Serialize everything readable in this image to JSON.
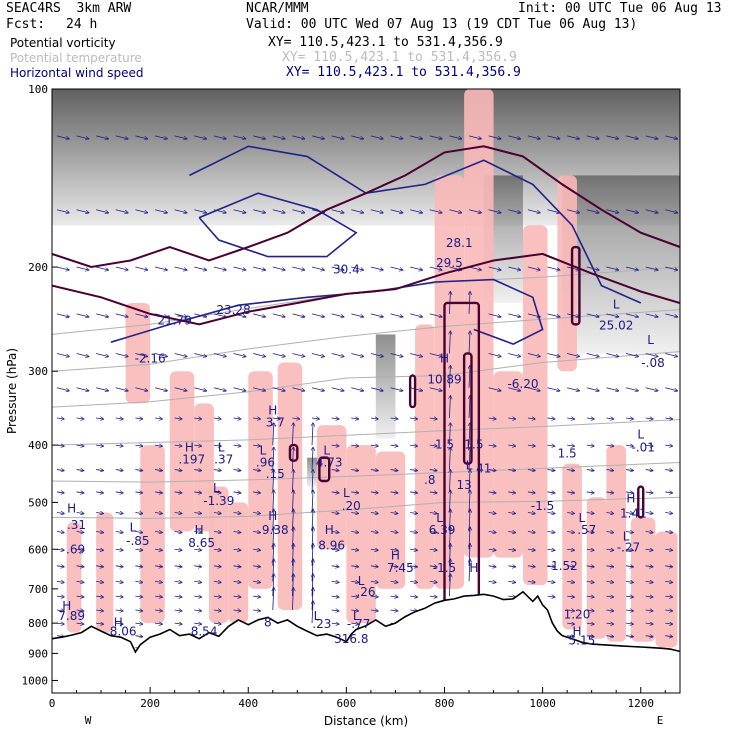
{
  "header": {
    "model": "SEAC4RS  3km ARW",
    "center": "NCAR/MMM",
    "init": "Init: 00 UTC Tue 06 Aug 13",
    "fcst_label": "Fcst:",
    "fcst_value": "24 h",
    "valid": "Valid: 00 UTC Wed 07 Aug 13 (19 CDT Tue 06 Aug 13)"
  },
  "fields": [
    {
      "name": "Potential vorticity",
      "xy": "XY= 110.5,423.1 to 531.4,356.9",
      "color": "#000000"
    },
    {
      "name": "Potential temperature",
      "xy": "XY= 110.5,423.1 to 531.4,356.9",
      "color": "#bbbbbb"
    },
    {
      "name": "Horizontal wind speed",
      "xy": "XY= 110.5,423.1 to 531.4,356.9",
      "color": "#000080"
    }
  ],
  "chart_data": {
    "type": "cross-section",
    "xlabel": "Distance (km)",
    "ylabel": "Pressure (hPa)",
    "xlim": [
      0,
      1280
    ],
    "ylim": [
      1050,
      100
    ],
    "yscale": "log",
    "x_ticks": [
      "0",
      "200",
      "400",
      "600",
      "800",
      "1000",
      "1200"
    ],
    "x_tick_values": [
      0,
      200,
      400,
      600,
      800,
      1000,
      1200
    ],
    "y_ticks": [
      "100",
      "200",
      "300",
      "400",
      "500",
      "600",
      "700",
      "800",
      "900",
      "1000"
    ],
    "y_tick_values": [
      100,
      200,
      300,
      400,
      500,
      600,
      700,
      800,
      900,
      1000
    ],
    "left_end": "W",
    "right_end": "E",
    "colors": {
      "pv_contour": "#4a0030",
      "isentrope": "#b0b0b0",
      "wind": "#1a1a8a",
      "pink_fill": "#f9b9b9",
      "terrain": "#000000"
    },
    "terrain": [
      [
        0,
        850
      ],
      [
        20,
        845
      ],
      [
        40,
        838
      ],
      [
        60,
        830
      ],
      [
        80,
        810
      ],
      [
        100,
        825
      ],
      [
        120,
        840
      ],
      [
        140,
        845
      ],
      [
        160,
        860
      ],
      [
        170,
        895
      ],
      [
        180,
        870
      ],
      [
        200,
        845
      ],
      [
        220,
        835
      ],
      [
        240,
        820
      ],
      [
        260,
        840
      ],
      [
        280,
        835
      ],
      [
        300,
        850
      ],
      [
        320,
        830
      ],
      [
        340,
        842
      ],
      [
        360,
        810
      ],
      [
        380,
        790
      ],
      [
        400,
        805
      ],
      [
        420,
        790
      ],
      [
        440,
        782
      ],
      [
        460,
        800
      ],
      [
        480,
        790
      ],
      [
        500,
        810
      ],
      [
        520,
        825
      ],
      [
        540,
        840
      ],
      [
        560,
        835
      ],
      [
        580,
        845
      ],
      [
        600,
        860
      ],
      [
        610,
        835
      ],
      [
        620,
        820
      ],
      [
        640,
        808
      ],
      [
        660,
        790
      ],
      [
        680,
        810
      ],
      [
        700,
        800
      ],
      [
        720,
        780
      ],
      [
        740,
        765
      ],
      [
        760,
        755
      ],
      [
        780,
        740
      ],
      [
        800,
        732
      ],
      [
        820,
        728
      ],
      [
        840,
        720
      ],
      [
        860,
        718
      ],
      [
        880,
        715
      ],
      [
        900,
        720
      ],
      [
        920,
        730
      ],
      [
        940,
        728
      ],
      [
        960,
        708
      ],
      [
        980,
        735
      ],
      [
        990,
        720
      ],
      [
        1000,
        745
      ],
      [
        1010,
        760
      ],
      [
        1020,
        800
      ],
      [
        1030,
        825
      ],
      [
        1040,
        840
      ],
      [
        1060,
        850
      ],
      [
        1080,
        862
      ],
      [
        1100,
        868
      ],
      [
        1120,
        870
      ],
      [
        1140,
        872
      ],
      [
        1160,
        874
      ],
      [
        1180,
        876
      ],
      [
        1200,
        878
      ],
      [
        1220,
        880
      ],
      [
        1240,
        882
      ],
      [
        1260,
        885
      ],
      [
        1280,
        893
      ]
    ],
    "isentropes": [
      [
        [
          0,
          260
        ],
        [
          200,
          250
        ],
        [
          400,
          235
        ],
        [
          600,
          222
        ],
        [
          800,
          212
        ],
        [
          1000,
          208
        ],
        [
          1280,
          200
        ]
      ],
      [
        [
          0,
          300
        ],
        [
          200,
          292
        ],
        [
          400,
          275
        ],
        [
          600,
          262
        ],
        [
          800,
          252
        ],
        [
          1000,
          245
        ],
        [
          1280,
          236
        ]
      ],
      [
        [
          0,
          345
        ],
        [
          200,
          338
        ],
        [
          400,
          325
        ],
        [
          600,
          308
        ],
        [
          800,
          305
        ],
        [
          1000,
          290
        ],
        [
          1280,
          278
        ]
      ],
      [
        [
          0,
          400
        ],
        [
          200,
          396
        ],
        [
          400,
          392
        ],
        [
          600,
          385
        ],
        [
          800,
          378
        ],
        [
          1000,
          372
        ],
        [
          1280,
          362
        ]
      ],
      [
        [
          0,
          460
        ],
        [
          200,
          462
        ],
        [
          400,
          458
        ],
        [
          600,
          452
        ],
        [
          800,
          445
        ],
        [
          1000,
          438
        ],
        [
          1280,
          428
        ]
      ],
      [
        [
          0,
          530
        ],
        [
          200,
          532
        ],
        [
          400,
          528
        ],
        [
          600,
          515
        ],
        [
          800,
          500
        ],
        [
          1000,
          498
        ],
        [
          1280,
          490
        ]
      ]
    ],
    "pink_regions": [
      [
        30,
        540,
        60,
        830
      ],
      [
        90,
        520,
        125,
        830
      ],
      [
        150,
        230,
        200,
        340
      ],
      [
        180,
        400,
        230,
        800
      ],
      [
        240,
        300,
        290,
        560
      ],
      [
        290,
        340,
        330,
        560
      ],
      [
        320,
        470,
        360,
        800
      ],
      [
        360,
        500,
        400,
        800
      ],
      [
        400,
        300,
        450,
        700
      ],
      [
        460,
        290,
        510,
        760
      ],
      [
        540,
        370,
        600,
        600
      ],
      [
        600,
        400,
        660,
        800
      ],
      [
        660,
        410,
        720,
        700
      ],
      [
        740,
        250,
        780,
        700
      ],
      [
        780,
        140,
        840,
        700
      ],
      [
        840,
        100,
        900,
        620
      ],
      [
        900,
        300,
        960,
        620
      ],
      [
        960,
        170,
        1010,
        690
      ],
      [
        1030,
        140,
        1070,
        300
      ],
      [
        1040,
        430,
        1080,
        820
      ],
      [
        1090,
        490,
        1130,
        850
      ],
      [
        1130,
        400,
        1170,
        860
      ],
      [
        1180,
        530,
        1230,
        860
      ],
      [
        1230,
        560,
        1275,
        880
      ]
    ],
    "pv_contours": [
      [
        [
          0,
          190
        ],
        [
          80,
          200
        ],
        [
          160,
          195
        ],
        [
          240,
          185
        ],
        [
          320,
          195
        ],
        [
          400,
          185
        ],
        [
          480,
          175
        ],
        [
          560,
          160
        ],
        [
          640,
          150
        ],
        [
          720,
          140
        ],
        [
          800,
          128
        ],
        [
          880,
          125
        ],
        [
          960,
          130
        ],
        [
          1040,
          145
        ],
        [
          1120,
          160
        ],
        [
          1200,
          175
        ],
        [
          1280,
          185
        ]
      ],
      [
        [
          0,
          215
        ],
        [
          100,
          225
        ],
        [
          200,
          240
        ],
        [
          300,
          250
        ],
        [
          400,
          238
        ],
        [
          500,
          230
        ],
        [
          600,
          222
        ],
        [
          700,
          218
        ],
        [
          800,
          205
        ],
        [
          900,
          195
        ],
        [
          1000,
          190
        ],
        [
          1100,
          205
        ],
        [
          1200,
          220
        ],
        [
          1280,
          230
        ]
      ]
    ],
    "pv_blobs": [
      [
        800,
        230,
        870,
        760
      ],
      [
        545,
        420,
        565,
        460
      ],
      [
        485,
        400,
        500,
        425
      ],
      [
        730,
        305,
        740,
        345
      ],
      [
        840,
        280,
        855,
        430
      ],
      [
        1060,
        185,
        1075,
        250
      ],
      [
        1195,
        470,
        1205,
        530
      ]
    ],
    "gray_bands": [
      [
        0,
        100,
        1280,
        170
      ],
      [
        880,
        140,
        960,
        230
      ],
      [
        1040,
        140,
        1280,
        280
      ],
      [
        660,
        260,
        700,
        390
      ],
      [
        520,
        420,
        560,
        470
      ]
    ],
    "wind_contours": [
      [
        [
          280,
          140
        ],
        [
          400,
          125
        ],
        [
          520,
          130
        ],
        [
          640,
          150
        ],
        [
          760,
          145
        ],
        [
          880,
          132
        ],
        [
          980,
          145
        ],
        [
          1060,
          170
        ],
        [
          1120,
          215
        ],
        [
          1200,
          230
        ]
      ],
      [
        [
          120,
          268
        ],
        [
          240,
          250
        ],
        [
          380,
          232
        ],
        [
          520,
          225
        ],
        [
          660,
          220
        ],
        [
          780,
          212
        ],
        [
          900,
          210
        ],
        [
          980,
          225
        ],
        [
          1000,
          255
        ],
        [
          940,
          270
        ],
        [
          860,
          255
        ]
      ],
      [
        [
          300,
          165
        ],
        [
          420,
          150
        ],
        [
          540,
          160
        ],
        [
          620,
          175
        ],
        [
          560,
          192
        ],
        [
          440,
          192
        ],
        [
          340,
          180
        ],
        [
          300,
          165
        ]
      ]
    ],
    "labels": [
      {
        "x": 40,
        "p": 520,
        "text": "H"
      },
      {
        "x": 50,
        "p": 555,
        "text": ".31"
      },
      {
        "x": 48,
        "p": 610,
        "text": ".69"
      },
      {
        "x": 165,
        "p": 560,
        "text": "L"
      },
      {
        "x": 175,
        "p": 590,
        "text": "-.85"
      },
      {
        "x": 300,
        "p": 565,
        "text": "H"
      },
      {
        "x": 305,
        "p": 595,
        "text": "8.65"
      },
      {
        "x": 450,
        "p": 535,
        "text": "H"
      },
      {
        "x": 455,
        "p": 565,
        "text": "9.38"
      },
      {
        "x": 565,
        "p": 565,
        "text": "H"
      },
      {
        "x": 570,
        "p": 600,
        "text": "8.96"
      },
      {
        "x": 335,
        "p": 480,
        "text": "L"
      },
      {
        "x": 340,
        "p": 505,
        "text": "-1.39"
      },
      {
        "x": 280,
        "p": 410,
        "text": "H"
      },
      {
        "x": 285,
        "p": 430,
        "text": ".197"
      },
      {
        "x": 345,
        "p": 410,
        "text": "L"
      },
      {
        "x": 350,
        "p": 430,
        "text": ".37"
      },
      {
        "x": 450,
        "p": 355,
        "text": "H"
      },
      {
        "x": 455,
        "p": 372,
        "text": "3.7"
      },
      {
        "x": 430,
        "p": 415,
        "text": "L"
      },
      {
        "x": 435,
        "p": 435,
        "text": ".96"
      },
      {
        "x": 455,
        "p": 455,
        "text": ".15"
      },
      {
        "x": 560,
        "p": 415,
        "text": "L"
      },
      {
        "x": 565,
        "p": 435,
        "text": "4.73"
      },
      {
        "x": 600,
        "p": 490,
        "text": "L"
      },
      {
        "x": 610,
        "p": 515,
        "text": ".20"
      },
      {
        "x": 800,
        "p": 290,
        "text": "H"
      },
      {
        "x": 800,
        "p": 315,
        "text": "10.89"
      },
      {
        "x": 960,
        "p": 320,
        "text": "-6.20"
      },
      {
        "x": 700,
        "p": 625,
        "text": "H"
      },
      {
        "x": 710,
        "p": 655,
        "text": "7.45"
      },
      {
        "x": 1080,
        "p": 540,
        "text": "L"
      },
      {
        "x": 1090,
        "p": 565,
        "text": ".57"
      },
      {
        "x": 1180,
        "p": 500,
        "text": "H"
      },
      {
        "x": 1185,
        "p": 530,
        "text": "1.41"
      },
      {
        "x": 1170,
        "p": 580,
        "text": "L"
      },
      {
        "x": 1175,
        "p": 605,
        "text": "-.27"
      },
      {
        "x": 790,
        "p": 540,
        "text": "L"
      },
      {
        "x": 795,
        "p": 565,
        "text": "6.39"
      },
      {
        "x": 800,
        "p": 655,
        "text": "-1.5"
      },
      {
        "x": 1040,
        "p": 650,
        "text": "-1.52"
      },
      {
        "x": 1000,
        "p": 515,
        "text": "-1.5"
      },
      {
        "x": 1050,
        "p": 420,
        "text": "1.5"
      },
      {
        "x": 1200,
        "p": 390,
        "text": "L"
      },
      {
        "x": 1205,
        "p": 410,
        "text": "-.01"
      },
      {
        "x": 1220,
        "p": 270,
        "text": "L"
      },
      {
        "x": 1225,
        "p": 295,
        "text": "-.08"
      },
      {
        "x": 1150,
        "p": 235,
        "text": "L"
      },
      {
        "x": 1150,
        "p": 255,
        "text": "25.02"
      },
      {
        "x": 250,
        "p": 250,
        "text": "21.79"
      },
      {
        "x": 370,
        "p": 240,
        "text": "23.28"
      },
      {
        "x": 200,
        "p": 290,
        "text": "-2.16"
      },
      {
        "x": 600,
        "p": 205,
        "text": "30.4"
      },
      {
        "x": 830,
        "p": 185,
        "text": "28.1"
      },
      {
        "x": 810,
        "p": 200,
        "text": "29.5"
      },
      {
        "x": 630,
        "p": 690,
        "text": "L"
      },
      {
        "x": 640,
        "p": 720,
        "text": ".26"
      },
      {
        "x": 540,
        "p": 790,
        "text": "L"
      },
      {
        "x": 550,
        "p": 815,
        "text": ".23"
      },
      {
        "x": 620,
        "p": 790,
        "text": "L"
      },
      {
        "x": 625,
        "p": 815,
        "text": "-.77"
      },
      {
        "x": 610,
        "p": 865,
        "text": "316.8"
      },
      {
        "x": 30,
        "p": 760,
        "text": "H"
      },
      {
        "x": 40,
        "p": 790,
        "text": "7.89"
      },
      {
        "x": 135,
        "p": 810,
        "text": "H"
      },
      {
        "x": 145,
        "p": 840,
        "text": "8.06"
      },
      {
        "x": 310,
        "p": 840,
        "text": "8.54"
      },
      {
        "x": 440,
        "p": 810,
        "text": "8"
      },
      {
        "x": 1070,
        "p": 785,
        "text": "1.20"
      },
      {
        "x": 1070,
        "p": 840,
        "text": "H"
      },
      {
        "x": 1080,
        "p": 870,
        "text": "5.15"
      },
      {
        "x": 800,
        "p": 405,
        "text": "1.5"
      },
      {
        "x": 860,
        "p": 405,
        "text": "1.5"
      },
      {
        "x": 840,
        "p": 475,
        "text": "13"
      },
      {
        "x": 880,
        "p": 445,
        "text": "41"
      },
      {
        "x": 770,
        "p": 465,
        "text": ".8"
      },
      {
        "x": 860,
        "p": 655,
        "text": "H"
      },
      {
        "x": 850,
        "p": 440,
        "text": "L"
      }
    ]
  }
}
